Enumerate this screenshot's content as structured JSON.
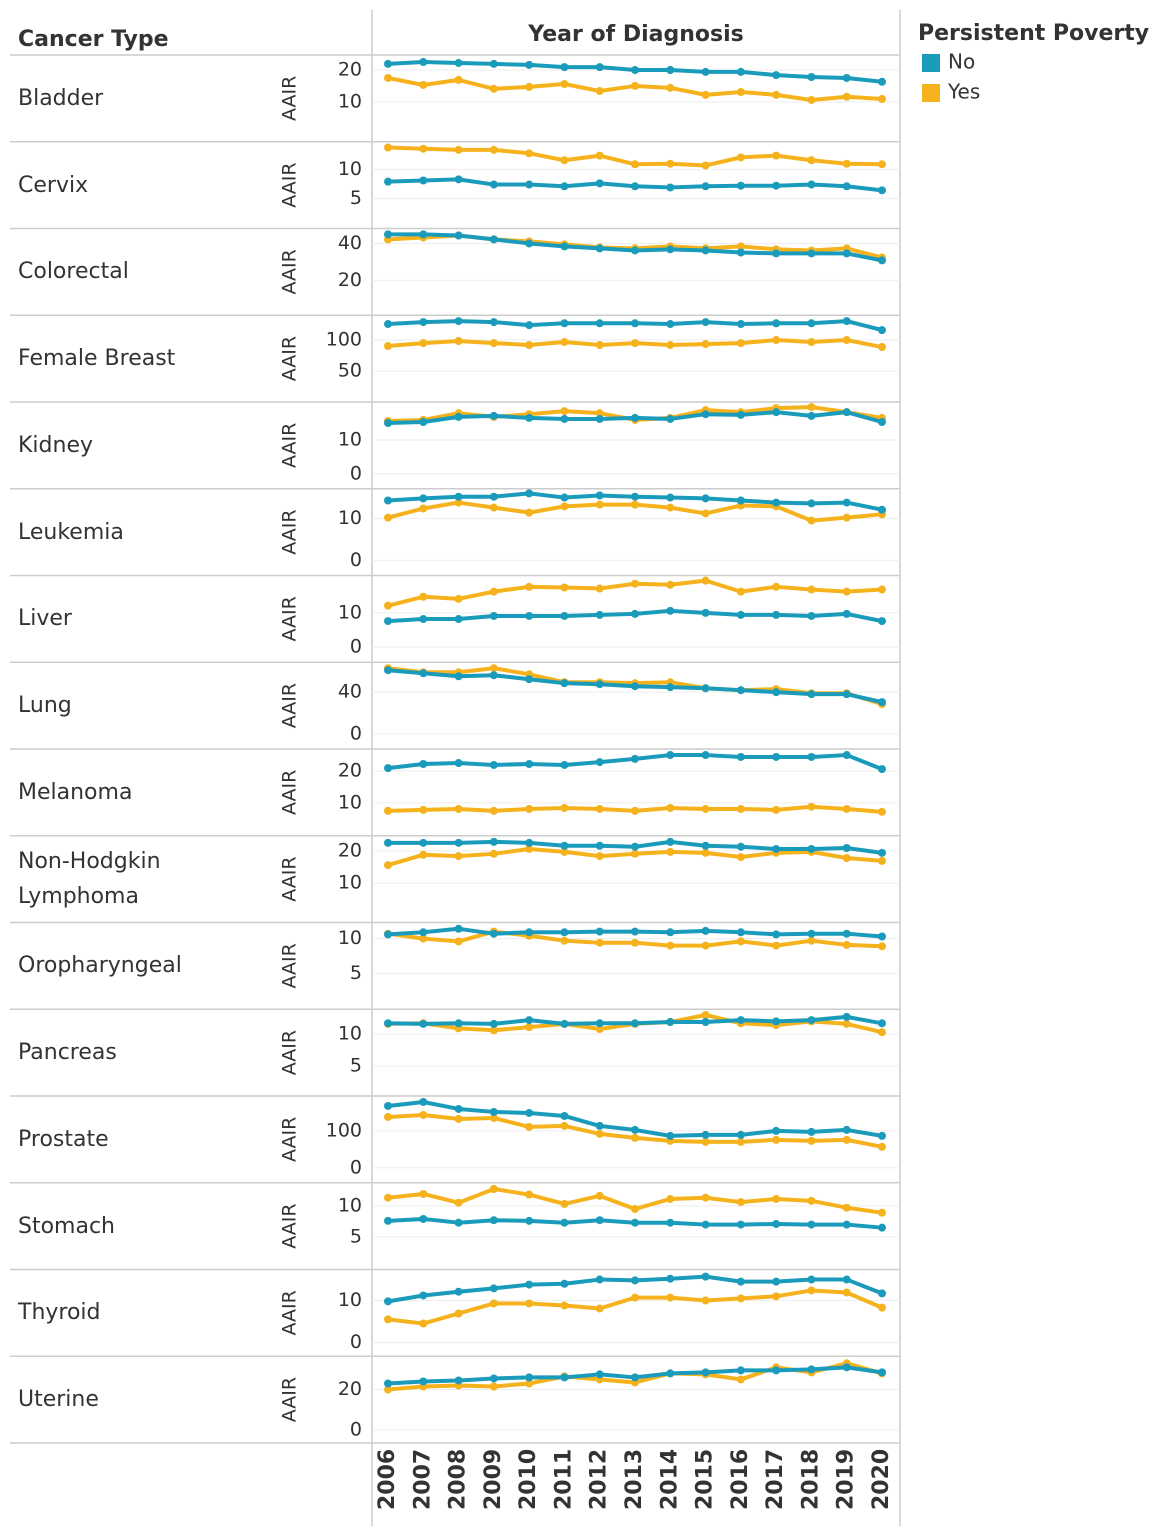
{
  "chart_data": {
    "type": "line",
    "row_header": "Cancer Type",
    "x_label": "Year of Diagnosis",
    "y_label": "AAIR",
    "legend_title": "Persistent Poverty",
    "series": [
      {
        "name": "No",
        "color": "#1b9bbb"
      },
      {
        "name": "Yes",
        "color": "#f5b21c"
      }
    ],
    "x": [
      2006,
      2007,
      2008,
      2009,
      2010,
      2011,
      2012,
      2013,
      2014,
      2015,
      2016,
      2017,
      2018,
      2019,
      2020
    ],
    "panels": [
      {
        "name": "Bladder",
        "ylim": [
          -2.5,
          24.7
        ],
        "yticks": [
          10,
          20
        ],
        "series": [
          {
            "values": [
              21.9,
              22.5,
              22.2,
              21.9,
              21.6,
              20.9,
              20.9,
              20,
              20,
              19.4,
              19.4,
              18.4,
              17.8,
              17.5,
              16.3
            ]
          },
          {
            "values": [
              17.5,
              15.3,
              16.9,
              14.1,
              14.7,
              15.6,
              13.4,
              15,
              14.4,
              12.2,
              13.1,
              12.2,
              10.6,
              11.6,
              10.9
            ]
          }
        ]
      },
      {
        "name": "Cervix",
        "ylim": [
          -0.2,
          14.8
        ],
        "yticks": [
          5,
          10
        ],
        "series": [
          {
            "values": [
              7.9,
              8.1,
              8.3,
              7.4,
              7.4,
              7.1,
              7.6,
              7.1,
              6.9,
              7.1,
              7.2,
              7.2,
              7.4,
              7.1,
              6.4
            ]
          },
          {
            "values": [
              13.8,
              13.6,
              13.4,
              13.4,
              12.8,
              11.6,
              12.4,
              10.9,
              11,
              10.7,
              12.1,
              12.4,
              11.6,
              11,
              10.9
            ]
          }
        ]
      },
      {
        "name": "Colorectal",
        "ylim": [
          1.1,
          48.1
        ],
        "yticks": [
          20,
          40
        ],
        "series": [
          {
            "values": [
              44.9,
              44.9,
              44.3,
              42.2,
              40,
              38.4,
              37.3,
              36.2,
              36.8,
              36.2,
              35.1,
              34.6,
              34.6,
              34.6,
              30.8
            ]
          },
          {
            "values": [
              42.2,
              43.2,
              44.3,
              42.2,
              41.1,
              39.5,
              37.8,
              37.3,
              38.4,
              37.3,
              38.4,
              36.8,
              36.2,
              37.3,
              32.4
            ]
          }
        ]
      },
      {
        "name": "Female Breast",
        "ylim": [
          0,
          140
        ],
        "yticks": [
          50,
          100
        ],
        "series": [
          {
            "values": [
              125.8,
              129,
              130.6,
              129,
              124,
              127,
              127,
              127,
              125.8,
              129,
              125.8,
              127,
              127,
              130.6,
              116
            ]
          },
          {
            "values": [
              90.3,
              95,
              98.4,
              95,
              92,
              96.8,
              92,
              95,
              92,
              93.5,
              95,
              100,
              96.8,
              100,
              88.7
            ]
          }
        ]
      },
      {
        "name": "Kidney",
        "ylim": [
          -4.4,
          21.2
        ],
        "yticks": [
          0,
          10
        ],
        "series": [
          {
            "values": [
              15,
              15.3,
              16.8,
              17.1,
              16.5,
              16.2,
              16.2,
              16.5,
              16.2,
              17.6,
              17.4,
              18.2,
              17.1,
              18.2,
              15.3
            ]
          },
          {
            "values": [
              15.6,
              15.9,
              17.9,
              16.8,
              17.6,
              18.5,
              17.9,
              15.9,
              16.5,
              18.8,
              18.2,
              19.4,
              19.7,
              18.2,
              16.5
            ]
          }
        ]
      },
      {
        "name": "Leukemia",
        "ylim": [
          -3.6,
          17.1
        ],
        "yticks": [
          0,
          10
        ],
        "series": [
          {
            "values": [
              14.3,
              14.8,
              15.2,
              15.2,
              16,
              15,
              15.5,
              15.2,
              15,
              14.8,
              14.3,
              13.8,
              13.6,
              13.8,
              12.1
            ]
          },
          {
            "values": [
              10.2,
              12.4,
              13.8,
              12.6,
              11.4,
              12.9,
              13.3,
              13.3,
              12.6,
              11.2,
              13.1,
              12.9,
              9.5,
              10.2,
              11
            ]
          }
        ]
      },
      {
        "name": "Liver",
        "ylim": [
          -4.4,
          20.9
        ],
        "yticks": [
          0,
          10
        ],
        "series": [
          {
            "values": [
              7.6,
              8.2,
              8.2,
              9.1,
              9.1,
              9.1,
              9.4,
              9.7,
              10.6,
              10,
              9.4,
              9.4,
              9.1,
              9.7,
              7.6
            ]
          },
          {
            "values": [
              12.1,
              14.7,
              14.1,
              16.2,
              17.6,
              17.4,
              17.1,
              18.5,
              18.2,
              19.4,
              16.2,
              17.6,
              16.8,
              16.2,
              16.8
            ]
          }
        ]
      },
      {
        "name": "Lung",
        "ylim": [
          -14.3,
          68.6
        ],
        "yticks": [
          0,
          40
        ],
        "series": [
          {
            "values": [
              61,
              58.1,
              55.2,
              56.2,
              52.4,
              48.6,
              47.6,
              45.7,
              44.8,
              43.8,
              41.9,
              40,
              38.1,
              38.1,
              30.5
            ]
          },
          {
            "values": [
              62.9,
              59,
              59,
              62.9,
              57.1,
              49.5,
              49.5,
              48.6,
              49.5,
              43.8,
              41.9,
              42.9,
              39,
              39,
              28.6
            ]
          }
        ]
      },
      {
        "name": "Melanoma",
        "ylim": [
          -0.3,
          26.9
        ],
        "yticks": [
          10,
          20
        ],
        "series": [
          {
            "values": [
              20.9,
              22.2,
              22.5,
              21.9,
              22.2,
              21.9,
              22.8,
              23.8,
              25,
              25,
              24.4,
              24.4,
              24.4,
              25,
              20.6
            ]
          },
          {
            "values": [
              7.5,
              7.8,
              8.1,
              7.5,
              8.1,
              8.4,
              8.1,
              7.5,
              8.4,
              8.1,
              8.1,
              7.8,
              8.8,
              8.1,
              7.2
            ]
          }
        ]
      },
      {
        "name": "Non-Hodgkin Lymphoma",
        "ylim": [
          -2.2,
          24.7
        ],
        "yticks": [
          10,
          20
        ],
        "series": [
          {
            "values": [
              22.5,
              22.5,
              22.5,
              22.8,
              22.5,
              21.6,
              21.6,
              21.3,
              22.8,
              21.6,
              21.3,
              20.6,
              20.6,
              20.9,
              19.4
            ]
          },
          {
            "values": [
              15.6,
              18.8,
              18.4,
              19.1,
              20.6,
              19.7,
              18.4,
              19.1,
              19.7,
              19.4,
              18.1,
              19.4,
              19.7,
              17.8,
              16.9
            ]
          }
        ]
      },
      {
        "name": "Oropharyngeal",
        "ylim": [
          -0.1,
          12.3
        ],
        "yticks": [
          5,
          10
        ],
        "series": [
          {
            "values": [
              10.6,
              10.9,
              11.4,
              10.7,
              10.9,
              10.9,
              11,
              11,
              10.9,
              11.1,
              10.9,
              10.6,
              10.7,
              10.7,
              10.3
            ]
          },
          {
            "values": [
              10.7,
              10,
              9.6,
              11,
              10.4,
              9.7,
              9.4,
              9.4,
              9,
              9,
              9.6,
              9,
              9.7,
              9.1,
              8.9
            ]
          }
        ]
      },
      {
        "name": "Pancreas",
        "ylim": [
          0.3,
          13.9
        ],
        "yticks": [
          5,
          10
        ],
        "series": [
          {
            "values": [
              11.7,
              11.6,
              11.7,
              11.6,
              12.2,
              11.6,
              11.7,
              11.7,
              11.9,
              11.9,
              12.2,
              12,
              12.2,
              12.7,
              11.7
            ]
          },
          {
            "values": [
              11.6,
              11.7,
              10.9,
              10.6,
              11.1,
              11.6,
              10.8,
              11.6,
              11.9,
              13,
              11.7,
              11.4,
              12,
              11.6,
              10.3
            ]
          }
        ]
      },
      {
        "name": "Prostate",
        "ylim": [
          -40.5,
          194.6
        ],
        "yticks": [
          0,
          100
        ],
        "series": [
          {
            "values": [
              167.6,
              178.4,
              159.5,
              151.4,
              148.6,
              140.5,
              113.5,
              102.7,
              86.5,
              89.2,
              89.2,
              100,
              97.3,
              102.7,
              86.5
            ]
          },
          {
            "values": [
              137.8,
              143.2,
              132.4,
              135.1,
              110.8,
              113.5,
              91.9,
              81.1,
              73,
              70.3,
              70.3,
              75.7,
              73,
              75.7,
              56.8
            ]
          }
        ]
      },
      {
        "name": "Stomach",
        "ylim": [
          -0.2,
          13.7
        ],
        "yticks": [
          5,
          10
        ],
        "series": [
          {
            "values": [
              7.6,
              7.9,
              7.3,
              7.7,
              7.6,
              7.3,
              7.7,
              7.3,
              7.3,
              7,
              7,
              7.1,
              7,
              7,
              6.5
            ]
          },
          {
            "values": [
              11.3,
              11.9,
              10.5,
              12.7,
              11.8,
              10.3,
              11.6,
              9.5,
              11.1,
              11.3,
              10.6,
              11.1,
              10.8,
              9.7,
              8.9
            ]
          }
        ]
      },
      {
        "name": "Thyroid",
        "ylim": [
          -3.3,
          17.4
        ],
        "yticks": [
          0,
          10
        ],
        "series": [
          {
            "values": [
              9.8,
              11.2,
              12.1,
              12.9,
              13.8,
              14,
              15,
              14.8,
              15.2,
              15.7,
              14.5,
              14.5,
              15,
              15,
              11.7
            ]
          },
          {
            "values": [
              5.5,
              4.5,
              6.9,
              9.3,
              9.3,
              8.8,
              8.1,
              10.7,
              10.7,
              10,
              10.5,
              11,
              12.4,
              11.9,
              8.3
            ]
          }
        ]
      },
      {
        "name": "Uterine",
        "ylim": [
          -6.5,
          36.5
        ],
        "yticks": [
          0,
          20
        ],
        "series": [
          {
            "values": [
              23,
              24,
              24.5,
              25.5,
              26,
              26,
              27.5,
              26,
              28,
              28.5,
              29.5,
              29.5,
              30,
              31,
              28.5
            ]
          },
          {
            "values": [
              20,
              21.5,
              22,
              21.5,
              23,
              26.5,
              25,
              23.5,
              28,
              27.5,
              25,
              31,
              28.5,
              33,
              28
            ]
          }
        ]
      }
    ]
  }
}
